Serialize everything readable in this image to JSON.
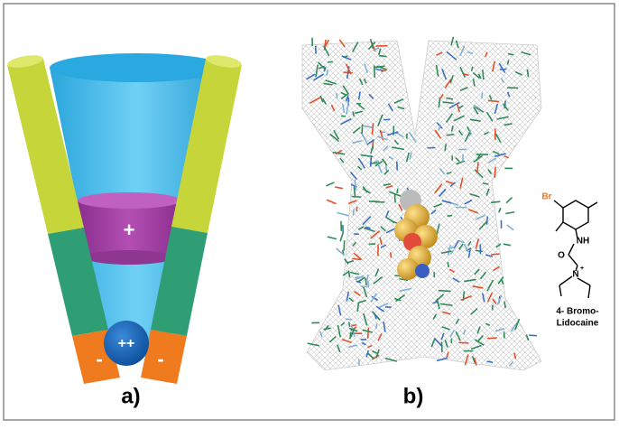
{
  "panel_a": {
    "pore_site": "+",
    "left_charge": "-",
    "right_charge": "-",
    "ion": "++",
    "caption": "a)"
  },
  "panel_b": {
    "caption": "b)"
  },
  "molecule": {
    "atoms": [
      "Br",
      "NH",
      "O",
      "N",
      "+"
    ],
    "name_lines": [
      "4- Bromo-",
      "Lidocaine"
    ]
  }
}
